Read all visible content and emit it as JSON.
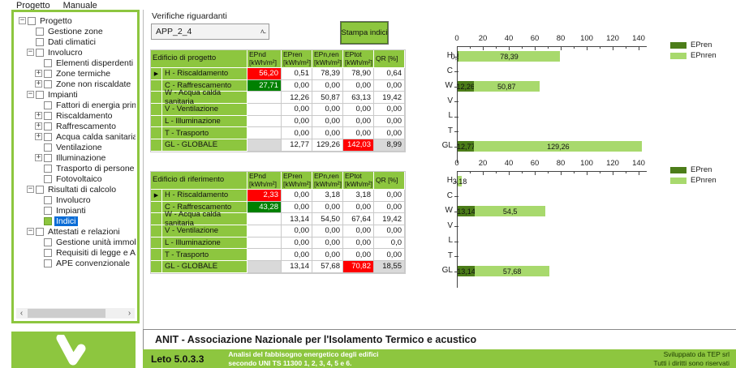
{
  "colors": {
    "accent_green": "#8dc63f",
    "bar_dark_green": "#4c7d19",
    "bar_light_green": "#a8d96d",
    "cell_red": "#ff0000",
    "cell_dark_green": "#008000",
    "cell_gray": "#d9d9d9",
    "selection_blue": "#0a6cd6"
  },
  "menu": {
    "items": [
      "Progetto",
      "Manuale"
    ]
  },
  "tree": {
    "items": [
      {
        "label": "Progetto",
        "level": 0,
        "expander": "minus",
        "checkbox": "empty",
        "selected": false
      },
      {
        "label": "Gestione zone",
        "level": 1,
        "expander": "",
        "checkbox": "empty",
        "selected": false
      },
      {
        "label": "Dati climatici",
        "level": 1,
        "expander": "",
        "checkbox": "empty",
        "selected": false
      },
      {
        "label": "Involucro",
        "level": 1,
        "expander": "minus",
        "checkbox": "empty",
        "selected": false
      },
      {
        "label": "Elementi disperdenti",
        "level": 2,
        "expander": "",
        "checkbox": "empty",
        "selected": false
      },
      {
        "label": "Zone termiche",
        "level": 2,
        "expander": "plus",
        "checkbox": "empty",
        "selected": false
      },
      {
        "label": "Zone non riscaldate",
        "level": 2,
        "expander": "plus",
        "checkbox": "empty",
        "selected": false
      },
      {
        "label": "Impianti",
        "level": 1,
        "expander": "minus",
        "checkbox": "empty",
        "selected": false
      },
      {
        "label": "Fattori di energia primaria",
        "level": 2,
        "expander": "",
        "checkbox": "empty",
        "selected": false
      },
      {
        "label": "Riscaldamento",
        "level": 2,
        "expander": "plus",
        "checkbox": "empty",
        "selected": false
      },
      {
        "label": "Raffrescamento",
        "level": 2,
        "expander": "plus",
        "checkbox": "empty",
        "selected": false
      },
      {
        "label": "Acqua calda sanitaria",
        "level": 2,
        "expander": "plus",
        "checkbox": "empty",
        "selected": false
      },
      {
        "label": "Ventilazione",
        "level": 2,
        "expander": "",
        "checkbox": "empty",
        "selected": false
      },
      {
        "label": "Illuminazione",
        "level": 2,
        "expander": "plus",
        "checkbox": "empty",
        "selected": false
      },
      {
        "label": "Trasporto di persone e/o cose",
        "level": 2,
        "expander": "",
        "checkbox": "empty",
        "selected": false
      },
      {
        "label": "Fotovoltaico",
        "level": 2,
        "expander": "",
        "checkbox": "empty",
        "selected": false
      },
      {
        "label": "Risultati di calcolo",
        "level": 1,
        "expander": "minus",
        "checkbox": "empty",
        "selected": false
      },
      {
        "label": "Involucro",
        "level": 2,
        "expander": "",
        "checkbox": "empty",
        "selected": false
      },
      {
        "label": "Impianti",
        "level": 2,
        "expander": "",
        "checkbox": "empty",
        "selected": false
      },
      {
        "label": "Indici",
        "level": 2,
        "expander": "",
        "checkbox": "green",
        "selected": true
      },
      {
        "label": "Attestati e relazioni",
        "level": 1,
        "expander": "minus",
        "checkbox": "empty",
        "selected": false
      },
      {
        "label": "Gestione unità immobiliari",
        "level": 2,
        "expander": "",
        "checkbox": "empty",
        "selected": false
      },
      {
        "label": "Requisiti di legge e APE tradizionale",
        "level": 2,
        "expander": "",
        "checkbox": "empty",
        "selected": false
      },
      {
        "label": "APE convenzionale",
        "level": 2,
        "expander": "",
        "checkbox": "empty",
        "selected": false
      }
    ]
  },
  "main": {
    "filter_label": "Verifiche riguardanti",
    "dropdown": {
      "value": "APP_2_4"
    },
    "print_button_label": "Stampa indici",
    "tables": [
      {
        "title": "Edificio di progetto",
        "columns": [
          {
            "name": "EPnd",
            "unit": "[kWh/m²]"
          },
          {
            "name": "EPren",
            "unit": "[kWh/m²]"
          },
          {
            "name": "EPn,ren",
            "unit": "[kWh/m²]"
          },
          {
            "name": "EPtot",
            "unit": "[kWh/m²]"
          },
          {
            "name": "QR [%]",
            "unit": ""
          }
        ],
        "rows": [
          {
            "label": "H - Riscaldamento",
            "marker": true,
            "cells": [
              {
                "text": "56,20",
                "bg": "red"
              },
              {
                "text": "0,51",
                "bg": "white"
              },
              {
                "text": "78,39",
                "bg": "white"
              },
              {
                "text": "78,90",
                "bg": "white"
              },
              {
                "text": "0,64",
                "bg": "white"
              }
            ]
          },
          {
            "label": "C - Raffrescamento",
            "marker": false,
            "cells": [
              {
                "text": "27,71",
                "bg": "green"
              },
              {
                "text": "0,00",
                "bg": "white"
              },
              {
                "text": "0,00",
                "bg": "white"
              },
              {
                "text": "0,00",
                "bg": "white"
              },
              {
                "text": "0,00",
                "bg": "white"
              }
            ]
          },
          {
            "label": "W - Acqua calda sanitaria",
            "marker": false,
            "cells": [
              {
                "text": "",
                "bg": "white"
              },
              {
                "text": "12,26",
                "bg": "white"
              },
              {
                "text": "50,87",
                "bg": "white"
              },
              {
                "text": "63,13",
                "bg": "white"
              },
              {
                "text": "19,42",
                "bg": "white"
              }
            ]
          },
          {
            "label": "V - Ventilazione",
            "marker": false,
            "cells": [
              {
                "text": "",
                "bg": "white"
              },
              {
                "text": "0,00",
                "bg": "white"
              },
              {
                "text": "0,00",
                "bg": "white"
              },
              {
                "text": "0,00",
                "bg": "white"
              },
              {
                "text": "0,00",
                "bg": "white"
              }
            ]
          },
          {
            "label": "L - Illuminazione",
            "marker": false,
            "cells": [
              {
                "text": "",
                "bg": "white"
              },
              {
                "text": "0,00",
                "bg": "white"
              },
              {
                "text": "0,00",
                "bg": "white"
              },
              {
                "text": "0,00",
                "bg": "white"
              },
              {
                "text": "0,00",
                "bg": "white"
              }
            ]
          },
          {
            "label": "T - Trasporto",
            "marker": false,
            "cells": [
              {
                "text": "",
                "bg": "white"
              },
              {
                "text": "0,00",
                "bg": "white"
              },
              {
                "text": "0,00",
                "bg": "white"
              },
              {
                "text": "0,00",
                "bg": "white"
              },
              {
                "text": "0,00",
                "bg": "white"
              }
            ]
          },
          {
            "label": "GL - GLOBALE",
            "marker": false,
            "cells": [
              {
                "text": "",
                "bg": "gray"
              },
              {
                "text": "12,77",
                "bg": "white"
              },
              {
                "text": "129,26",
                "bg": "white"
              },
              {
                "text": "142,03",
                "bg": "red"
              },
              {
                "text": "8,99",
                "bg": "gray"
              }
            ]
          }
        ]
      },
      {
        "title": "Edificio di riferimento",
        "columns": [
          {
            "name": "EPnd",
            "unit": "[kWh/m²]"
          },
          {
            "name": "EPren",
            "unit": "[kWh/m²]"
          },
          {
            "name": "EPn,ren",
            "unit": "[kWh/m²]"
          },
          {
            "name": "EPtot",
            "unit": "[kWh/m²]"
          },
          {
            "name": "QR [%]",
            "unit": ""
          }
        ],
        "rows": [
          {
            "label": "H - Riscaldamento",
            "marker": true,
            "cells": [
              {
                "text": "2,33",
                "bg": "red"
              },
              {
                "text": "0,00",
                "bg": "white"
              },
              {
                "text": "3,18",
                "bg": "white"
              },
              {
                "text": "3,18",
                "bg": "white"
              },
              {
                "text": "0,00",
                "bg": "white"
              }
            ]
          },
          {
            "label": "C - Raffrescamento",
            "marker": false,
            "cells": [
              {
                "text": "43,28",
                "bg": "green"
              },
              {
                "text": "0,00",
                "bg": "white"
              },
              {
                "text": "0,00",
                "bg": "white"
              },
              {
                "text": "0,00",
                "bg": "white"
              },
              {
                "text": "0,00",
                "bg": "white"
              }
            ]
          },
          {
            "label": "W - Acqua calda sanitaria",
            "marker": false,
            "cells": [
              {
                "text": "",
                "bg": "white"
              },
              {
                "text": "13,14",
                "bg": "white"
              },
              {
                "text": "54,50",
                "bg": "white"
              },
              {
                "text": "67,64",
                "bg": "white"
              },
              {
                "text": "19,42",
                "bg": "white"
              }
            ]
          },
          {
            "label": "V - Ventilazione",
            "marker": false,
            "cells": [
              {
                "text": "",
                "bg": "white"
              },
              {
                "text": "0,00",
                "bg": "white"
              },
              {
                "text": "0,00",
                "bg": "white"
              },
              {
                "text": "0,00",
                "bg": "white"
              },
              {
                "text": "0,00",
                "bg": "white"
              }
            ]
          },
          {
            "label": "L - Illuminazione",
            "marker": false,
            "cells": [
              {
                "text": "",
                "bg": "white"
              },
              {
                "text": "0,00",
                "bg": "white"
              },
              {
                "text": "0,00",
                "bg": "white"
              },
              {
                "text": "0,00",
                "bg": "white"
              },
              {
                "text": "0,0",
                "bg": "white"
              }
            ]
          },
          {
            "label": "T - Trasporto",
            "marker": false,
            "cells": [
              {
                "text": "",
                "bg": "white"
              },
              {
                "text": "0,00",
                "bg": "white"
              },
              {
                "text": "0,00",
                "bg": "white"
              },
              {
                "text": "0,00",
                "bg": "white"
              },
              {
                "text": "0,00",
                "bg": "white"
              }
            ]
          },
          {
            "label": "GL - GLOBALE",
            "marker": false,
            "cells": [
              {
                "text": "",
                "bg": "gray"
              },
              {
                "text": "13,14",
                "bg": "white"
              },
              {
                "text": "57,68",
                "bg": "white"
              },
              {
                "text": "70,82",
                "bg": "red"
              },
              {
                "text": "18,55",
                "bg": "gray"
              }
            ]
          }
        ]
      }
    ]
  },
  "chart_data": [
    {
      "type": "bar",
      "orientation": "horizontal",
      "stacked": true,
      "title": "",
      "categories": [
        "H",
        "C",
        "W",
        "V",
        "L",
        "T",
        "GL"
      ],
      "series": [
        {
          "name": "EPren",
          "color": "#4c7d19",
          "values": [
            0.51,
            0,
            12.26,
            0,
            0,
            0,
            12.77
          ],
          "labels": [
            "0,51",
            "",
            "12,26",
            "",
            "",
            "",
            "12,77"
          ]
        },
        {
          "name": "EPnren",
          "color": "#a8d96d",
          "values": [
            78.39,
            0,
            50.87,
            0,
            0,
            0,
            129.26
          ],
          "labels": [
            "78,39",
            "",
            "50,87",
            "",
            "",
            "",
            "129,26"
          ]
        }
      ],
      "xlim": [
        0,
        140
      ],
      "xticks": [
        0,
        20,
        40,
        60,
        80,
        100,
        120,
        140
      ],
      "grid": false,
      "legend_position": "right-top"
    },
    {
      "type": "bar",
      "orientation": "horizontal",
      "stacked": true,
      "title": "",
      "categories": [
        "H",
        "C",
        "W",
        "V",
        "L",
        "T",
        "GL"
      ],
      "series": [
        {
          "name": "EPren",
          "color": "#4c7d19",
          "values": [
            0,
            0,
            13.14,
            0,
            0,
            0,
            13.14
          ],
          "labels": [
            "",
            "",
            "13,14",
            "",
            "",
            "",
            "13,14"
          ]
        },
        {
          "name": "EPnren",
          "color": "#a8d96d",
          "values": [
            3.18,
            0,
            54.5,
            0,
            0,
            0,
            57.68
          ],
          "labels": [
            "3,18",
            "",
            "54,5",
            "",
            "",
            "",
            "57,68"
          ]
        }
      ],
      "xlim": [
        0,
        140
      ],
      "xticks": [
        0,
        20,
        40,
        60,
        80,
        100,
        120,
        140
      ],
      "grid": false,
      "legend_position": "right-top"
    }
  ],
  "footer": {
    "association": "ANIT - Associazione Nazionale per l'Isolamento Termico e acustico",
    "app_version": "Leto 5.0.3.3",
    "description_line1": "Analisi del fabbisogno energetico degli edifici",
    "description_line2": "secondo UNI TS 11300 1, 2, 3, 4, 5 e 6.",
    "credits_line1": "Sviluppato da TEP srl",
    "credits_line2": "Tutti i diritti sono riservati"
  }
}
